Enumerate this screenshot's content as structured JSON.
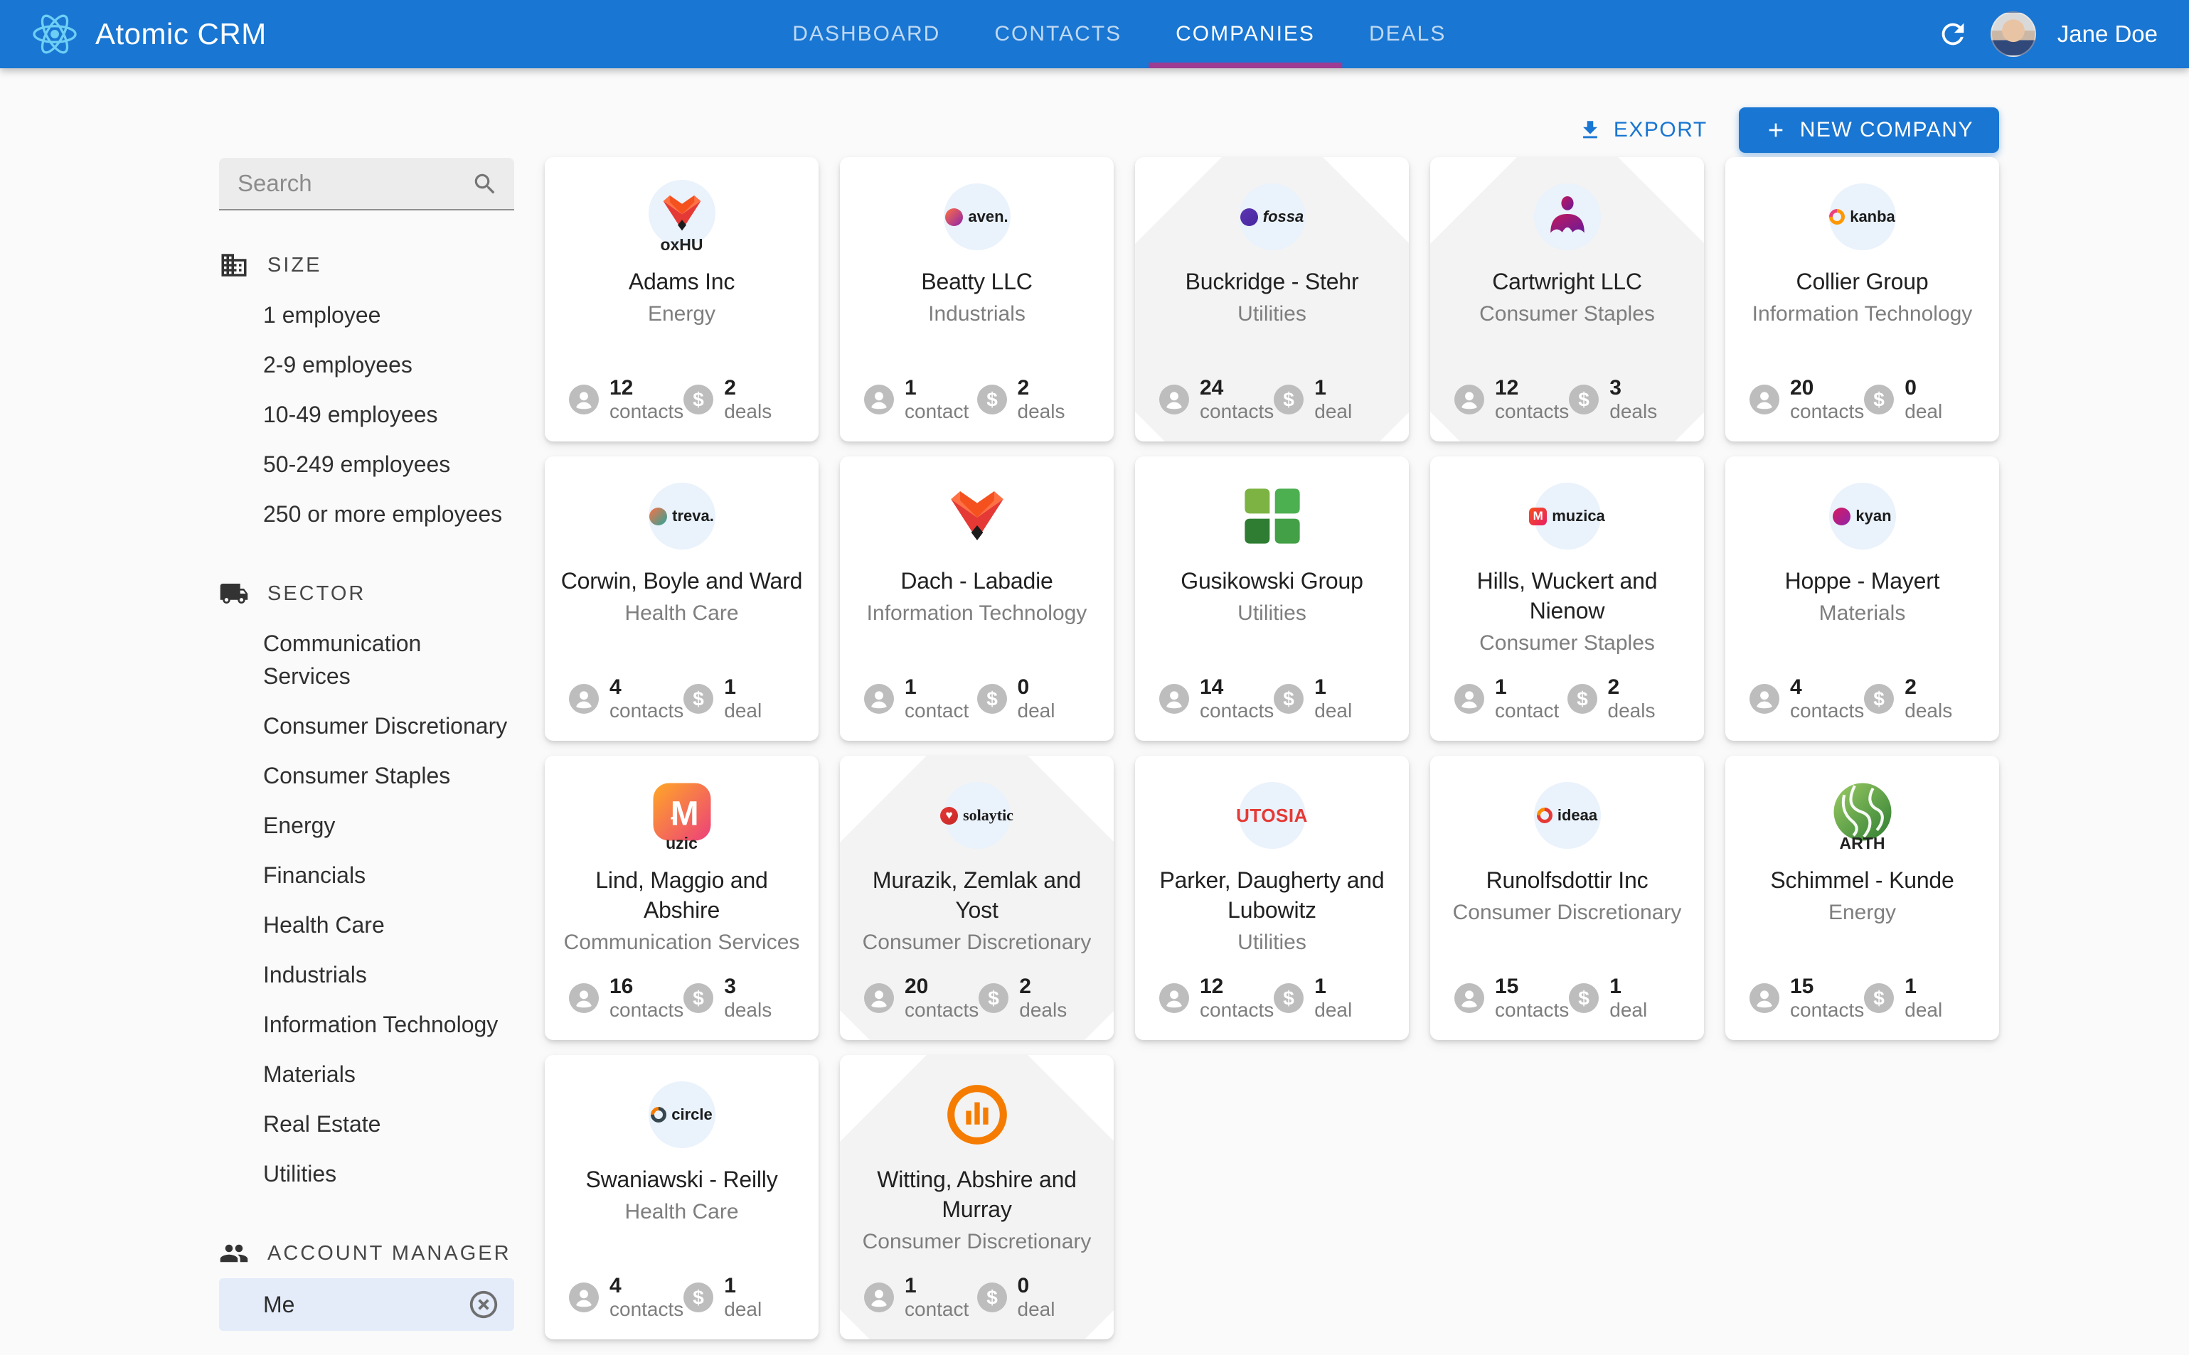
{
  "header": {
    "app_title": "Atomic CRM",
    "tabs": [
      {
        "label": "DASHBOARD",
        "active": false
      },
      {
        "label": "CONTACTS",
        "active": false
      },
      {
        "label": "COMPANIES",
        "active": true
      },
      {
        "label": "DEALS",
        "active": false
      }
    ],
    "user_name": "Jane Doe"
  },
  "toolbar": {
    "export_label": "EXPORT",
    "new_company_label": "NEW COMPANY"
  },
  "sidebar": {
    "search_placeholder": "Search",
    "sections": [
      {
        "title": "SIZE",
        "icon": "building-icon",
        "items": [
          {
            "label": "1 employee"
          },
          {
            "label": "2-9 employees"
          },
          {
            "label": "10-49 employees"
          },
          {
            "label": "50-249 employees"
          },
          {
            "label": "250 or more employees"
          }
        ]
      },
      {
        "title": "SECTOR",
        "icon": "truck-icon",
        "items": [
          {
            "label": "Communication Services"
          },
          {
            "label": "Consumer Discretionary"
          },
          {
            "label": "Consumer Staples"
          },
          {
            "label": "Energy"
          },
          {
            "label": "Financials"
          },
          {
            "label": "Health Care"
          },
          {
            "label": "Industrials"
          },
          {
            "label": "Information Technology"
          },
          {
            "label": "Materials"
          },
          {
            "label": "Real Estate"
          },
          {
            "label": "Utilities"
          }
        ]
      },
      {
        "title": "ACCOUNT MANAGER",
        "icon": "people-icon",
        "items": [
          {
            "label": "Me",
            "selected": true,
            "clearable": true
          }
        ]
      }
    ]
  },
  "companies": [
    {
      "name": "Adams Inc",
      "sector": "Energy",
      "contacts": {
        "value": "12",
        "label": "contacts"
      },
      "deals": {
        "value": "2",
        "label": "deals"
      },
      "logo": {
        "kind": "emblem",
        "emblem": "fox",
        "badge": true,
        "sub": "oxHU"
      },
      "watermark": false
    },
    {
      "name": "Beatty LLC",
      "sector": "Industrials",
      "contacts": {
        "value": "1",
        "label": "contact"
      },
      "deals": {
        "value": "2",
        "label": "deals"
      },
      "logo": {
        "kind": "wordmark",
        "text": "aven.",
        "dot": {
          "colors": [
            "#ff7043",
            "#8e24aa"
          ]
        }
      },
      "watermark": false
    },
    {
      "name": "Buckridge - Stehr",
      "sector": "Utilities",
      "contacts": {
        "value": "24",
        "label": "contacts"
      },
      "deals": {
        "value": "1",
        "label": "deal"
      },
      "logo": {
        "kind": "wordmark",
        "text": "fossa",
        "text_style": "italic",
        "dot": {
          "colors": [
            "#5e35b1",
            "#4527a0"
          ]
        }
      },
      "watermark": true
    },
    {
      "name": "Cartwright LLC",
      "sector": "Consumer Staples",
      "contacts": {
        "value": "12",
        "label": "contacts"
      },
      "deals": {
        "value": "3",
        "label": "deals"
      },
      "logo": {
        "kind": "emblem",
        "emblem": "person",
        "badge": true
      },
      "watermark": true
    },
    {
      "name": "Collier Group",
      "sector": "Information Technology",
      "contacts": {
        "value": "20",
        "label": "contacts"
      },
      "deals": {
        "value": "0",
        "label": "deal"
      },
      "logo": {
        "kind": "wordmark",
        "text": "kanba",
        "dot": {
          "colors": [
            "#ec407a",
            "#ff9800"
          ],
          "ring": true
        }
      },
      "watermark": false
    },
    {
      "name": "Corwin, Boyle and Ward",
      "sector": "Health Care",
      "contacts": {
        "value": "4",
        "label": "contacts"
      },
      "deals": {
        "value": "1",
        "label": "deal"
      },
      "logo": {
        "kind": "wordmark",
        "text": "treva.",
        "dot": {
          "colors": [
            "#ff7043",
            "#26a69a"
          ]
        }
      },
      "watermark": false
    },
    {
      "name": "Dach - Labadie",
      "sector": "Information Technology",
      "contacts": {
        "value": "1",
        "label": "contact"
      },
      "deals": {
        "value": "0",
        "label": "deal"
      },
      "logo": {
        "kind": "emblem",
        "emblem": "fox",
        "badge": false
      },
      "watermark": false
    },
    {
      "name": "Gusikowski Group",
      "sector": "Utilities",
      "contacts": {
        "value": "14",
        "label": "contacts"
      },
      "deals": {
        "value": "1",
        "label": "deal"
      },
      "logo": {
        "kind": "emblem",
        "emblem": "clover",
        "badge": false
      },
      "watermark": false
    },
    {
      "name": "Hills, Wuckert and Nienow",
      "sector": "Consumer Staples",
      "contacts": {
        "value": "1",
        "label": "contact"
      },
      "deals": {
        "value": "2",
        "label": "deals"
      },
      "logo": {
        "kind": "wordmark",
        "text": "muzica",
        "dot": {
          "colors": [
            "#f4511e",
            "#e91e63"
          ],
          "shape": "squircle",
          "char": "M"
        }
      },
      "watermark": false
    },
    {
      "name": "Hoppe - Mayert",
      "sector": "Materials",
      "contacts": {
        "value": "4",
        "label": "contacts"
      },
      "deals": {
        "value": "2",
        "label": "deals"
      },
      "logo": {
        "kind": "wordmark",
        "text": "kyan",
        "dot": {
          "colors": [
            "#d81b60",
            "#8e24aa"
          ]
        }
      },
      "watermark": false
    },
    {
      "name": "Lind, Maggio and Abshire",
      "sector": "Communication Services",
      "contacts": {
        "value": "16",
        "label": "contacts"
      },
      "deals": {
        "value": "3",
        "label": "deals"
      },
      "logo": {
        "kind": "emblem",
        "emblem": "muzica",
        "badge": false,
        "sub": "uzic"
      },
      "watermark": false
    },
    {
      "name": "Murazik, Zemlak and Yost",
      "sector": "Consumer Discretionary",
      "contacts": {
        "value": "20",
        "label": "contacts"
      },
      "deals": {
        "value": "2",
        "label": "deals"
      },
      "logo": {
        "kind": "wordmark",
        "text": "solaytic",
        "text_style": "serif",
        "dot": {
          "colors": [
            "#e53935",
            "#c62828"
          ],
          "char": "♥"
        }
      },
      "watermark": true
    },
    {
      "name": "Parker, Daugherty and Lubowitz",
      "sector": "Utilities",
      "contacts": {
        "value": "12",
        "label": "contacts"
      },
      "deals": {
        "value": "1",
        "label": "deal"
      },
      "logo": {
        "kind": "wordmark",
        "text": "UTOSIA",
        "text_style": "red-bold"
      },
      "watermark": false
    },
    {
      "name": "Runolfsdottir Inc",
      "sector": "Consumer Discretionary",
      "contacts": {
        "value": "15",
        "label": "contacts"
      },
      "deals": {
        "value": "1",
        "label": "deal"
      },
      "logo": {
        "kind": "wordmark",
        "text": "ideaa",
        "dot": {
          "colors": [
            "#fb8c00",
            "#e53935"
          ],
          "ring": true
        }
      },
      "watermark": false
    },
    {
      "name": "Schimmel - Kunde",
      "sector": "Energy",
      "contacts": {
        "value": "15",
        "label": "contacts"
      },
      "deals": {
        "value": "1",
        "label": "deal"
      },
      "logo": {
        "kind": "emblem",
        "emblem": "globe",
        "badge": false,
        "sub": "ARTH"
      },
      "watermark": false
    },
    {
      "name": "Swaniawski - Reilly",
      "sector": "Health Care",
      "contacts": {
        "value": "4",
        "label": "contacts"
      },
      "deals": {
        "value": "1",
        "label": "deal"
      },
      "logo": {
        "kind": "wordmark",
        "text": "circle",
        "dot": {
          "colors": [
            "#f57c00",
            "#37474f"
          ],
          "ring": true
        }
      },
      "watermark": false
    },
    {
      "name": "Witting, Abshire and Murray",
      "sector": "Consumer Discretionary",
      "contacts": {
        "value": "1",
        "label": "contact"
      },
      "deals": {
        "value": "0",
        "label": "deal"
      },
      "logo": {
        "kind": "emblem",
        "emblem": "chart",
        "badge": false
      },
      "watermark": true
    }
  ],
  "colors": {
    "appbar": "#1976d2",
    "tab_indicator": "#9d3c92",
    "link": "#1976d2",
    "selected_filter_bg": "#e4ecfa",
    "stat_icon_gray": "#bdbdbd",
    "page_bg": "#fafafa"
  }
}
